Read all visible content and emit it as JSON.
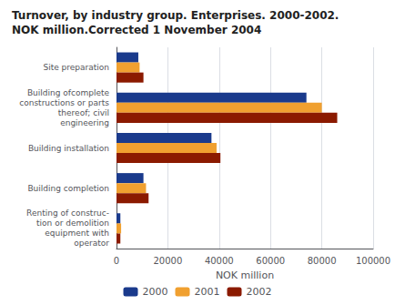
{
  "chart_data": {
    "type": "bar",
    "orientation": "horizontal",
    "title": "Turnover, by industry group. Enterprises. 2000-2002.",
    "subtitle": "NOK million.Corrected 1 November 2004",
    "categories": [
      "Site preparation",
      "Building ofcomplete\nconstructions or parts\nthereof; civil\nengineering",
      "Building installation",
      "Building completion",
      "Renting of construc-\ntion or demolition\nequipment with\noperator"
    ],
    "series": [
      {
        "name": "2000",
        "color": "#1a3a8c",
        "values": [
          8500,
          74000,
          37000,
          10500,
          1500
        ]
      },
      {
        "name": "2001",
        "color": "#f0a030",
        "values": [
          9000,
          80000,
          39000,
          11500,
          1800
        ]
      },
      {
        "name": "2002",
        "color": "#8b1a00",
        "values": [
          10500,
          86000,
          40500,
          12500,
          1500
        ]
      }
    ],
    "xlabel": "NOK million",
    "xlim": [
      0,
      100000
    ],
    "xticks": [
      0,
      20000,
      40000,
      60000,
      80000,
      100000
    ],
    "grid": true,
    "legend": "bottom"
  }
}
